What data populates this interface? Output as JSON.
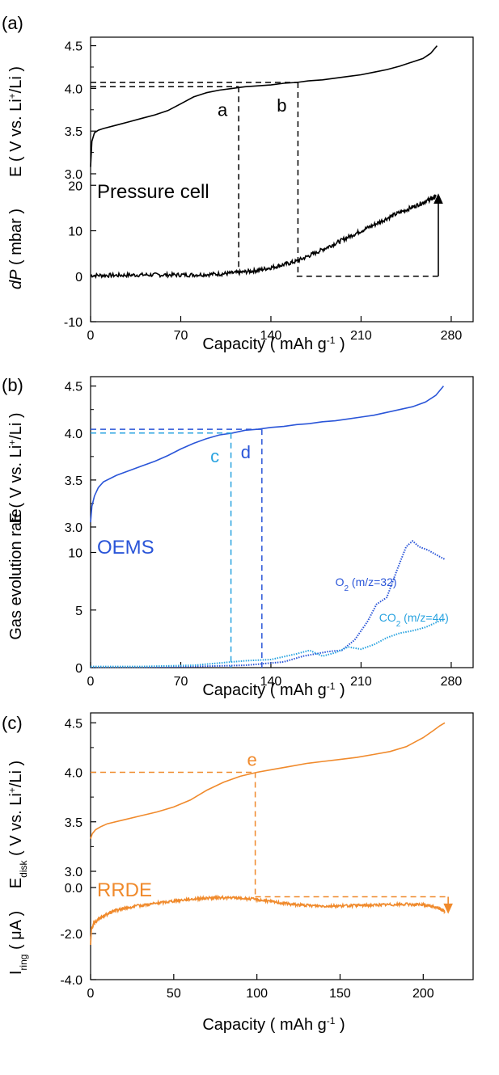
{
  "chart_data": [
    {
      "panel_label": "(a)",
      "type": "line",
      "cell_label": "Pressure cell",
      "xlabel": "Capacity ( mAh g-1 )",
      "xlim": [
        0,
        297
      ],
      "xticks": [
        0,
        70,
        140,
        210,
        280
      ],
      "top": {
        "ylabel": "E ( V vs. Li+/Li )",
        "ylim": [
          3.0,
          4.6
        ],
        "yticks": [
          "3.0",
          "3.5",
          "4.0",
          "4.5"
        ],
        "ytick_values": [
          3.0,
          3.5,
          4.0,
          4.5
        ],
        "series": [
          {
            "color": "#000000",
            "x": [
              0,
              1,
              3,
              6,
              10,
              20,
              30,
              40,
              50,
              60,
              70,
              80,
              90,
              100,
              110,
              115,
              120,
              130,
              140,
              150,
              160,
              170,
              180,
              190,
              200,
              210,
              220,
              230,
              240,
              250,
              258,
              264,
              269
            ],
            "y": [
              3.08,
              3.38,
              3.48,
              3.51,
              3.53,
              3.57,
              3.61,
              3.65,
              3.69,
              3.74,
              3.82,
              3.9,
              3.95,
              3.98,
              4.0,
              4.01,
              4.02,
              4.03,
              4.04,
              4.06,
              4.07,
              4.09,
              4.1,
              4.12,
              4.14,
              4.16,
              4.19,
              4.22,
              4.26,
              4.31,
              4.35,
              4.41,
              4.5
            ]
          }
        ],
        "markers": [
          {
            "label": "a",
            "x": 115,
            "y": 4.02
          },
          {
            "label": "b",
            "x": 161,
            "y": 4.07
          }
        ]
      },
      "bottom": {
        "ylabel": "dP ( mbar )",
        "ylim": [
          -10,
          22
        ],
        "yticks": [
          "-10",
          "0",
          "10",
          "20"
        ],
        "ytick_values": [
          -10,
          0,
          10,
          20
        ],
        "series": [
          {
            "color": "#000000",
            "x": [
              0,
              20,
              40,
              60,
              80,
              100,
              115,
              130,
              145,
              160,
              175,
              190,
              205,
              220,
              235,
              250,
              262,
              268
            ],
            "y": [
              0.2,
              0.2,
              0.3,
              0.3,
              0.3,
              0.5,
              0.8,
              1.3,
              2.2,
              3.3,
              5.2,
              7.2,
              9.3,
              11.3,
              13.4,
              15.2,
              16.7,
              17.5
            ]
          }
        ],
        "arrow": {
          "x": 270,
          "from": 0,
          "to": 18
        }
      }
    },
    {
      "panel_label": "(b)",
      "type": "line",
      "cell_label": "OEMS",
      "xlabel": "Capacity ( mAh g-1 )",
      "xlim": [
        0,
        297
      ],
      "xticks": [
        0,
        70,
        140,
        210,
        280
      ],
      "top": {
        "ylabel": "E ( V vs. Li+/Li )",
        "ylim": [
          3.0,
          4.6
        ],
        "yticks": [
          "3.0",
          "3.5",
          "4.0",
          "4.5"
        ],
        "ytick_values": [
          3.0,
          3.5,
          4.0,
          4.5
        ],
        "series": [
          {
            "color": "#2a55d8",
            "x": [
              0,
              1,
              3,
              6,
              10,
              20,
              30,
              40,
              50,
              60,
              70,
              80,
              90,
              100,
              110,
              120,
              130,
              140,
              150,
              160,
              170,
              180,
              190,
              200,
              210,
              220,
              230,
              240,
              250,
              260,
              268,
              274
            ],
            "y": [
              3.05,
              3.22,
              3.33,
              3.42,
              3.48,
              3.55,
              3.6,
              3.65,
              3.7,
              3.76,
              3.83,
              3.89,
              3.94,
              3.98,
              4.0,
              4.03,
              4.04,
              4.06,
              4.07,
              4.09,
              4.1,
              4.12,
              4.13,
              4.15,
              4.17,
              4.19,
              4.22,
              4.25,
              4.28,
              4.33,
              4.4,
              4.5
            ]
          }
        ],
        "markers": [
          {
            "label": "c",
            "x": 109,
            "y": 4.0,
            "color": "#29a3e0"
          },
          {
            "label": "d",
            "x": 133,
            "y": 4.04,
            "color": "#2a55d8"
          }
        ]
      },
      "bottom": {
        "ylabel": "Gas evolution rate",
        "ylim": [
          0,
          12
        ],
        "yticks": [
          "0",
          "5",
          "10"
        ],
        "ytick_values": [
          0,
          5,
          10
        ],
        "series": [
          {
            "name": "O2 (m/z=32)",
            "color": "#2a55d8",
            "x": [
              0,
              40,
              80,
              120,
              150,
              165,
              175,
              185,
              195,
              205,
              215,
              222,
              230,
              238,
              245,
              250,
              255,
              262,
              270,
              275
            ],
            "y": [
              0.05,
              0.05,
              0.1,
              0.2,
              0.5,
              1.0,
              1.2,
              1.4,
              1.5,
              2.4,
              4.0,
              5.5,
              6.1,
              8.5,
              10.5,
              11.0,
              10.5,
              10.2,
              9.7,
              9.4
            ]
          },
          {
            "name": "CO2 (m/z=44)",
            "color": "#29a3e0",
            "x": [
              0,
              40,
              80,
              100,
              120,
              140,
              160,
              170,
              180,
              190,
              200,
              210,
              220,
              230,
              240,
              250,
              260,
              270,
              275
            ],
            "y": [
              0.1,
              0.1,
              0.2,
              0.4,
              0.6,
              0.7,
              1.2,
              1.5,
              1.0,
              1.3,
              1.8,
              1.6,
              2.0,
              2.6,
              3.0,
              3.2,
              3.5,
              4.0,
              4.2
            ]
          }
        ]
      }
    },
    {
      "panel_label": "(c)",
      "type": "line",
      "cell_label": "RRDE",
      "xlabel": "Capacity ( mAh g-1 )",
      "xlim": [
        0,
        230
      ],
      "xticks": [
        0,
        50,
        100,
        150,
        200
      ],
      "top": {
        "ylabel": "E disk",
        "ylim": [
          3.0,
          4.6
        ],
        "yticks": [
          "3.0",
          "3.5",
          "4.0",
          "4.5"
        ],
        "ytick_values": [
          3.0,
          3.5,
          4.0,
          4.5
        ],
        "series": [
          {
            "color": "#f08a2c",
            "x": [
              0,
              1,
              3,
              6,
              10,
              20,
              30,
              40,
              50,
              60,
              70,
              80,
              90,
              100,
              110,
              120,
              130,
              140,
              150,
              160,
              170,
              180,
              190,
              200,
              206,
              210,
              213
            ],
            "y": [
              3.33,
              3.38,
              3.42,
              3.45,
              3.48,
              3.52,
              3.56,
              3.6,
              3.65,
              3.72,
              3.82,
              3.9,
              3.96,
              4.0,
              4.03,
              4.06,
              4.09,
              4.11,
              4.13,
              4.15,
              4.18,
              4.21,
              4.26,
              4.35,
              4.42,
              4.47,
              4.5
            ]
          }
        ],
        "markers": [
          {
            "label": "e",
            "x": 99,
            "y": 4.0
          }
        ]
      },
      "bottom": {
        "ylabel": "I ring ( μA )",
        "ylim": [
          -4.0,
          0.6
        ],
        "yticks": [
          "-4.0",
          "-2.0",
          "0.0"
        ],
        "ytick_values": [
          -4.0,
          -2.0,
          0.0
        ],
        "series": [
          {
            "color": "#f08a2c",
            "x": [
              0,
              0.5,
              2,
              5,
              10,
              15,
              20,
              30,
              40,
              50,
              60,
              70,
              80,
              90,
              100,
              110,
              120,
              130,
              140,
              150,
              160,
              170,
              180,
              190,
              200,
              205,
              210,
              213
            ],
            "y": [
              -2.5,
              -1.8,
              -1.55,
              -1.35,
              -1.15,
              -1.0,
              -0.9,
              -0.78,
              -0.68,
              -0.58,
              -0.5,
              -0.46,
              -0.44,
              -0.46,
              -0.52,
              -0.62,
              -0.72,
              -0.78,
              -0.8,
              -0.8,
              -0.78,
              -0.76,
              -0.74,
              -0.73,
              -0.75,
              -0.8,
              -0.92,
              -1.05
            ]
          }
        ],
        "arrow": {
          "x": 215,
          "from": -0.4,
          "to": -1.1
        }
      }
    }
  ]
}
